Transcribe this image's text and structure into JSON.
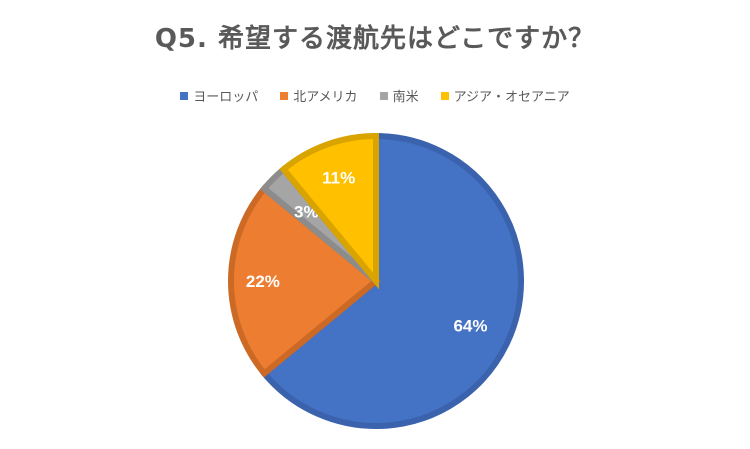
{
  "chart_data": {
    "type": "pie",
    "title": "Q5. 希望する渡航先はどこですか？",
    "legend_position": "top",
    "categories": [
      "ヨーロッパ",
      "北アメリカ",
      "南米",
      "アジア・オセアニア"
    ],
    "values": [
      64,
      22,
      3,
      11
    ],
    "data_labels": [
      "64%",
      "22%",
      "3%",
      "11%"
    ],
    "colors": [
      "#4472c4",
      "#ed7d31",
      "#a5a5a5",
      "#ffc000"
    ],
    "border_colors": [
      "#3a62ad",
      "#cc6a25",
      "#8c8c8c",
      "#d9a300"
    ]
  }
}
